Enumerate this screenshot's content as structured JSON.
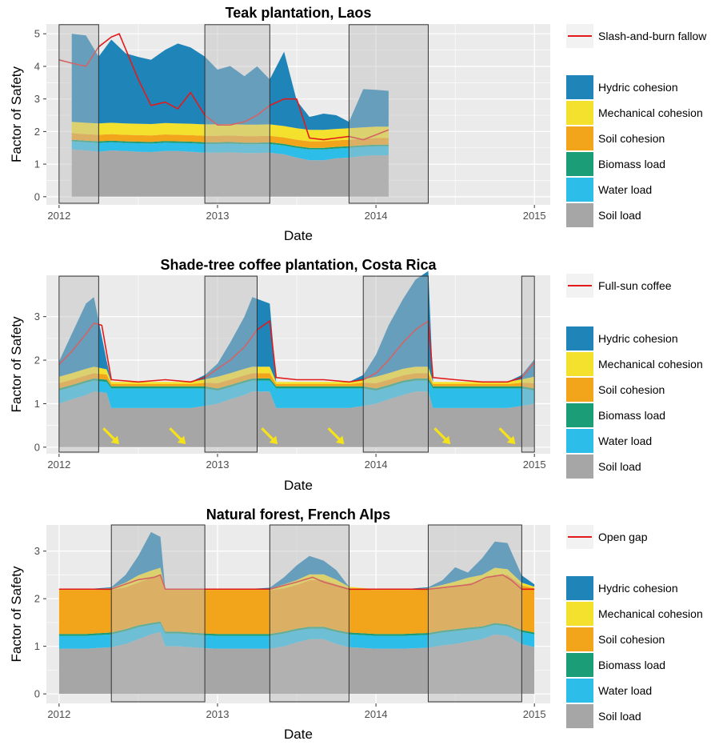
{
  "palette": {
    "hydric_cohesion": "#1f84b8",
    "mechanical_cohesion": "#f3e12d",
    "soil_cohesion": "#f2a51a",
    "biomass_load": "#1b9e77",
    "water_load": "#2cbde8",
    "soil_load": "#a6a6a6",
    "line": "#e31a1c",
    "panel_bg": "#ebebeb",
    "grid": "#ffffff",
    "shade": "#bfbfbf",
    "arrow": "#f5e21a"
  },
  "chart_data": [
    {
      "type": "area",
      "title": "Teak plantation, Laos",
      "xlabel": "Date",
      "ylabel": "Factor of Safety",
      "xlim": [
        2011.92,
        2015.1
      ],
      "ylim": [
        -0.25,
        5.3
      ],
      "x_ticks": [
        2012,
        2013,
        2014,
        2015
      ],
      "x_tick_labels": [
        "2012",
        "2013",
        "2014",
        "2015"
      ],
      "y_ticks": [
        0,
        1,
        2,
        3,
        4,
        5
      ],
      "y_tick_labels": [
        "0",
        "1",
        "2",
        "3",
        "4",
        "5"
      ],
      "shaded_periods": [
        [
          2012.0,
          2012.25
        ],
        [
          2012.92,
          2013.33
        ],
        [
          2013.83,
          2014.33
        ]
      ],
      "legend_line_label": "Slash-and-burn fallow",
      "legend_fill_labels": [
        "Hydric cohesion",
        "Mechanical cohesion",
        "Soil cohesion",
        "Biomass load",
        "Water load",
        "Soil load"
      ],
      "x": [
        2012.08,
        2012.17,
        2012.25,
        2012.33,
        2012.42,
        2012.5,
        2012.58,
        2012.67,
        2012.75,
        2012.83,
        2012.92,
        2013.0,
        2013.08,
        2013.17,
        2013.25,
        2013.33,
        2013.42,
        2013.5,
        2013.58,
        2013.67,
        2013.75,
        2013.83,
        2013.92,
        2014.0,
        2014.08
      ],
      "series": [
        {
          "name": "Soil load",
          "values": [
            1.45,
            1.42,
            1.38,
            1.42,
            1.4,
            1.38,
            1.37,
            1.4,
            1.4,
            1.38,
            1.35,
            1.35,
            1.36,
            1.34,
            1.34,
            1.35,
            1.3,
            1.2,
            1.12,
            1.12,
            1.18,
            1.2,
            1.25,
            1.27,
            1.27
          ]
        },
        {
          "name": "Water load",
          "values": [
            0.25,
            0.25,
            0.27,
            0.25,
            0.25,
            0.26,
            0.26,
            0.26,
            0.25,
            0.26,
            0.27,
            0.27,
            0.27,
            0.27,
            0.27,
            0.27,
            0.27,
            0.3,
            0.33,
            0.33,
            0.3,
            0.3,
            0.28,
            0.28,
            0.28
          ]
        },
        {
          "name": "Biomass load",
          "values": [
            0.05,
            0.05,
            0.05,
            0.05,
            0.05,
            0.05,
            0.05,
            0.05,
            0.05,
            0.05,
            0.05,
            0.05,
            0.05,
            0.05,
            0.05,
            0.05,
            0.05,
            0.05,
            0.05,
            0.05,
            0.05,
            0.05,
            0.05,
            0.05,
            0.05
          ]
        },
        {
          "name": "Soil cohesion",
          "values": [
            0.2,
            0.2,
            0.2,
            0.2,
            0.2,
            0.2,
            0.2,
            0.2,
            0.2,
            0.2,
            0.2,
            0.2,
            0.2,
            0.2,
            0.2,
            0.2,
            0.2,
            0.2,
            0.2,
            0.2,
            0.2,
            0.2,
            0.2,
            0.2,
            0.2
          ]
        },
        {
          "name": "Mechanical cohesion",
          "values": [
            0.35,
            0.35,
            0.35,
            0.35,
            0.35,
            0.35,
            0.35,
            0.35,
            0.35,
            0.35,
            0.35,
            0.35,
            0.35,
            0.35,
            0.35,
            0.35,
            0.35,
            0.35,
            0.35,
            0.35,
            0.35,
            0.35,
            0.35,
            0.35,
            0.35
          ]
        },
        {
          "name": "Hydric cohesion",
          "values": [
            2.7,
            2.68,
            2.05,
            2.55,
            2.15,
            2.05,
            1.97,
            2.25,
            2.45,
            2.34,
            2.08,
            1.68,
            1.78,
            1.49,
            1.79,
            1.38,
            2.28,
            0.85,
            0.4,
            0.5,
            0.42,
            0.2,
            1.17,
            1.13,
            1.1
          ]
        }
      ],
      "line": {
        "name": "Slash-and-burn fallow",
        "x": [
          2012.0,
          2012.08,
          2012.17,
          2012.25,
          2012.33,
          2012.38,
          2012.5,
          2012.58,
          2012.67,
          2012.75,
          2012.83,
          2012.92,
          2013.0,
          2013.08,
          2013.17,
          2013.25,
          2013.33,
          2013.42,
          2013.5,
          2013.58,
          2013.67,
          2013.75,
          2013.83,
          2013.92,
          2014.0,
          2014.08
        ],
        "values": [
          4.2,
          4.1,
          4.0,
          4.6,
          4.9,
          5.0,
          3.6,
          2.8,
          2.9,
          2.7,
          3.2,
          2.5,
          2.2,
          2.2,
          2.3,
          2.5,
          2.8,
          3.0,
          3.0,
          1.8,
          1.75,
          1.8,
          1.85,
          1.75,
          1.9,
          2.05
        ]
      }
    },
    {
      "type": "area",
      "title": "Shade-tree coffee plantation, Costa Rica",
      "xlabel": "Date",
      "ylabel": "Factor of Safety",
      "xlim": [
        2011.92,
        2015.1
      ],
      "ylim": [
        -0.15,
        3.95
      ],
      "x_ticks": [
        2012,
        2013,
        2014,
        2015
      ],
      "x_tick_labels": [
        "2012",
        "2013",
        "2014",
        "2015"
      ],
      "y_ticks": [
        0,
        1,
        2,
        3
      ],
      "y_tick_labels": [
        "0",
        "1",
        "2",
        "3"
      ],
      "shaded_periods": [
        [
          2012.0,
          2012.25
        ],
        [
          2012.92,
          2013.25
        ],
        [
          2013.92,
          2014.33
        ],
        [
          2014.92,
          2015.0
        ]
      ],
      "arrow_x": [
        2012.33,
        2012.75,
        2013.33,
        2013.75,
        2014.42,
        2014.83
      ],
      "legend_line_label": "Full-sun coffee",
      "legend_fill_labels": [
        "Hydric cohesion",
        "Mechanical cohesion",
        "Soil cohesion",
        "Biomass load",
        "Water load",
        "Soil load"
      ],
      "x": [
        2012.0,
        2012.08,
        2012.17,
        2012.22,
        2012.3,
        2012.33,
        2012.5,
        2012.67,
        2012.83,
        2012.92,
        2013.0,
        2013.08,
        2013.17,
        2013.22,
        2013.33,
        2013.37,
        2013.5,
        2013.67,
        2013.83,
        2013.92,
        2014.0,
        2014.08,
        2014.17,
        2014.25,
        2014.33,
        2014.36,
        2014.5,
        2014.67,
        2014.83,
        2014.92,
        2015.0
      ],
      "series": [
        {
          "name": "Soil load",
          "values": [
            1.0,
            1.1,
            1.2,
            1.28,
            1.25,
            0.9,
            0.9,
            0.9,
            0.9,
            0.95,
            1.0,
            1.1,
            1.2,
            1.28,
            1.28,
            0.9,
            0.9,
            0.9,
            0.9,
            0.95,
            1.0,
            1.1,
            1.2,
            1.28,
            1.28,
            0.9,
            0.9,
            0.9,
            0.9,
            0.95,
            1.0
          ]
        },
        {
          "name": "Water load",
          "values": [
            0.3,
            0.28,
            0.28,
            0.25,
            0.25,
            0.45,
            0.45,
            0.45,
            0.45,
            0.4,
            0.3,
            0.28,
            0.28,
            0.25,
            0.25,
            0.45,
            0.45,
            0.45,
            0.45,
            0.4,
            0.3,
            0.28,
            0.28,
            0.25,
            0.25,
            0.45,
            0.45,
            0.45,
            0.45,
            0.4,
            0.3
          ]
        },
        {
          "name": "Biomass load",
          "values": [
            0.05,
            0.05,
            0.05,
            0.05,
            0.05,
            0.05,
            0.05,
            0.05,
            0.05,
            0.05,
            0.05,
            0.05,
            0.05,
            0.05,
            0.05,
            0.05,
            0.05,
            0.05,
            0.05,
            0.05,
            0.05,
            0.05,
            0.05,
            0.05,
            0.05,
            0.05,
            0.05,
            0.05,
            0.05,
            0.05,
            0.05
          ]
        },
        {
          "name": "Soil cohesion",
          "values": [
            0.12,
            0.12,
            0.12,
            0.12,
            0.12,
            0.05,
            0.05,
            0.05,
            0.05,
            0.08,
            0.12,
            0.12,
            0.12,
            0.12,
            0.12,
            0.05,
            0.05,
            0.05,
            0.05,
            0.08,
            0.12,
            0.12,
            0.12,
            0.12,
            0.12,
            0.05,
            0.05,
            0.05,
            0.05,
            0.08,
            0.12
          ]
        },
        {
          "name": "Mechanical cohesion",
          "values": [
            0.15,
            0.15,
            0.15,
            0.15,
            0.12,
            0.05,
            0.05,
            0.05,
            0.05,
            0.08,
            0.15,
            0.15,
            0.15,
            0.15,
            0.15,
            0.05,
            0.05,
            0.05,
            0.05,
            0.08,
            0.15,
            0.15,
            0.15,
            0.15,
            0.15,
            0.05,
            0.05,
            0.05,
            0.05,
            0.08,
            0.15
          ]
        },
        {
          "name": "Hydric cohesion",
          "values": [
            0.35,
            0.9,
            1.5,
            1.6,
            0.2,
            0.0,
            0.0,
            0.0,
            0.0,
            0.1,
            0.3,
            0.7,
            1.2,
            1.6,
            1.45,
            0.0,
            0.0,
            0.0,
            0.0,
            0.1,
            0.5,
            1.1,
            1.6,
            2.0,
            2.2,
            0.0,
            0.0,
            0.0,
            0.0,
            0.1,
            0.4
          ]
        }
      ],
      "line": {
        "name": "Full-sun coffee",
        "x": [
          2012.0,
          2012.08,
          2012.17,
          2012.22,
          2012.27,
          2012.33,
          2012.5,
          2012.67,
          2012.83,
          2012.92,
          2013.0,
          2013.08,
          2013.17,
          2013.25,
          2013.33,
          2013.37,
          2013.5,
          2013.67,
          2013.83,
          2013.92,
          2014.0,
          2014.08,
          2014.17,
          2014.25,
          2014.33,
          2014.36,
          2014.5,
          2014.67,
          2014.83,
          2014.92,
          2015.0
        ],
        "values": [
          1.9,
          2.2,
          2.6,
          2.85,
          2.8,
          1.55,
          1.5,
          1.55,
          1.5,
          1.6,
          1.8,
          2.0,
          2.3,
          2.7,
          2.9,
          1.6,
          1.55,
          1.55,
          1.5,
          1.55,
          1.7,
          2.0,
          2.4,
          2.7,
          2.9,
          1.6,
          1.55,
          1.5,
          1.5,
          1.6,
          1.95
        ]
      }
    },
    {
      "type": "area",
      "title": "Natural forest, French Alps",
      "xlabel": "Date",
      "ylabel": "Factor of Safety",
      "xlim": [
        2011.92,
        2015.1
      ],
      "ylim": [
        -0.2,
        3.55
      ],
      "x_ticks": [
        2012,
        2013,
        2014,
        2015
      ],
      "x_tick_labels": [
        "2012",
        "2013",
        "2014",
        "2015"
      ],
      "y_ticks": [
        0,
        1,
        2,
        3
      ],
      "y_tick_labels": [
        "0",
        "1",
        "2",
        "3"
      ],
      "shaded_periods": [
        [
          2012.33,
          2012.92
        ],
        [
          2013.33,
          2013.83
        ],
        [
          2014.33,
          2014.92
        ]
      ],
      "legend_line_label": "Open gap",
      "legend_fill_labels": [
        "Hydric cohesion",
        "Mechanical cohesion",
        "Soil cohesion",
        "Biomass load",
        "Water load",
        "Soil load"
      ],
      "x": [
        2012.0,
        2012.17,
        2012.33,
        2012.42,
        2012.5,
        2012.58,
        2012.64,
        2012.67,
        2012.75,
        2012.83,
        2012.92,
        2013.0,
        2013.17,
        2013.33,
        2013.42,
        2013.5,
        2013.58,
        2013.67,
        2013.75,
        2013.83,
        2014.0,
        2014.17,
        2014.33,
        2014.42,
        2014.5,
        2014.58,
        2014.67,
        2014.75,
        2014.83,
        2014.92,
        2015.0
      ],
      "series": [
        {
          "name": "Soil load",
          "values": [
            0.95,
            0.95,
            0.98,
            1.05,
            1.15,
            1.25,
            1.3,
            1.0,
            1.0,
            0.98,
            0.96,
            0.95,
            0.95,
            0.95,
            1.0,
            1.08,
            1.15,
            1.15,
            1.05,
            0.98,
            0.95,
            0.95,
            0.97,
            1.02,
            1.05,
            1.1,
            1.15,
            1.25,
            1.22,
            1.05,
            0.98
          ]
        },
        {
          "name": "Water load",
          "values": [
            0.27,
            0.27,
            0.27,
            0.27,
            0.25,
            0.2,
            0.18,
            0.27,
            0.27,
            0.27,
            0.27,
            0.27,
            0.27,
            0.27,
            0.27,
            0.25,
            0.22,
            0.22,
            0.25,
            0.27,
            0.27,
            0.27,
            0.27,
            0.27,
            0.27,
            0.25,
            0.23,
            0.2,
            0.2,
            0.25,
            0.27
          ]
        },
        {
          "name": "Biomass load",
          "values": [
            0.04,
            0.04,
            0.04,
            0.04,
            0.04,
            0.04,
            0.04,
            0.04,
            0.04,
            0.04,
            0.04,
            0.04,
            0.04,
            0.04,
            0.04,
            0.04,
            0.04,
            0.04,
            0.04,
            0.04,
            0.04,
            0.04,
            0.04,
            0.04,
            0.04,
            0.04,
            0.04,
            0.04,
            0.04,
            0.04,
            0.04
          ]
        },
        {
          "name": "Soil cohesion",
          "values": [
            0.92,
            0.92,
            0.9,
            0.88,
            0.9,
            0.95,
            0.98,
            0.87,
            0.87,
            0.89,
            0.91,
            0.92,
            0.92,
            0.92,
            0.91,
            0.92,
            0.98,
            0.98,
            0.96,
            0.93,
            0.92,
            0.92,
            0.91,
            0.9,
            0.9,
            0.93,
            0.96,
            1.01,
            1.04,
            0.94,
            0.93
          ]
        },
        {
          "name": "Mechanical cohesion",
          "values": [
            0.02,
            0.02,
            0.03,
            0.1,
            0.15,
            0.15,
            0.15,
            0.02,
            0.02,
            0.02,
            0.02,
            0.02,
            0.02,
            0.03,
            0.08,
            0.1,
            0.12,
            0.12,
            0.1,
            0.03,
            0.02,
            0.02,
            0.03,
            0.06,
            0.1,
            0.12,
            0.12,
            0.15,
            0.12,
            0.06,
            0.03
          ]
        },
        {
          "name": "Hydric cohesion",
          "values": [
            0.0,
            0.0,
            0.02,
            0.16,
            0.41,
            0.81,
            0.65,
            0.0,
            0.0,
            0.0,
            0.0,
            0.0,
            0.0,
            0.02,
            0.15,
            0.31,
            0.39,
            0.29,
            0.2,
            0.0,
            0.0,
            0.0,
            0.02,
            0.1,
            0.3,
            0.11,
            0.35,
            0.55,
            0.55,
            0.15,
            0.05
          ]
        }
      ],
      "line": {
        "name": "Open gap",
        "x": [
          2012.0,
          2012.33,
          2012.5,
          2012.6,
          2012.64,
          2012.67,
          2012.92,
          2013.33,
          2013.5,
          2013.6,
          2013.67,
          2013.83,
          2014.33,
          2014.6,
          2014.7,
          2014.8,
          2014.85,
          2014.92,
          2015.0
        ],
        "values": [
          2.2,
          2.2,
          2.4,
          2.45,
          2.5,
          2.2,
          2.2,
          2.2,
          2.35,
          2.45,
          2.35,
          2.2,
          2.2,
          2.3,
          2.45,
          2.5,
          2.4,
          2.2,
          2.2
        ]
      }
    }
  ]
}
